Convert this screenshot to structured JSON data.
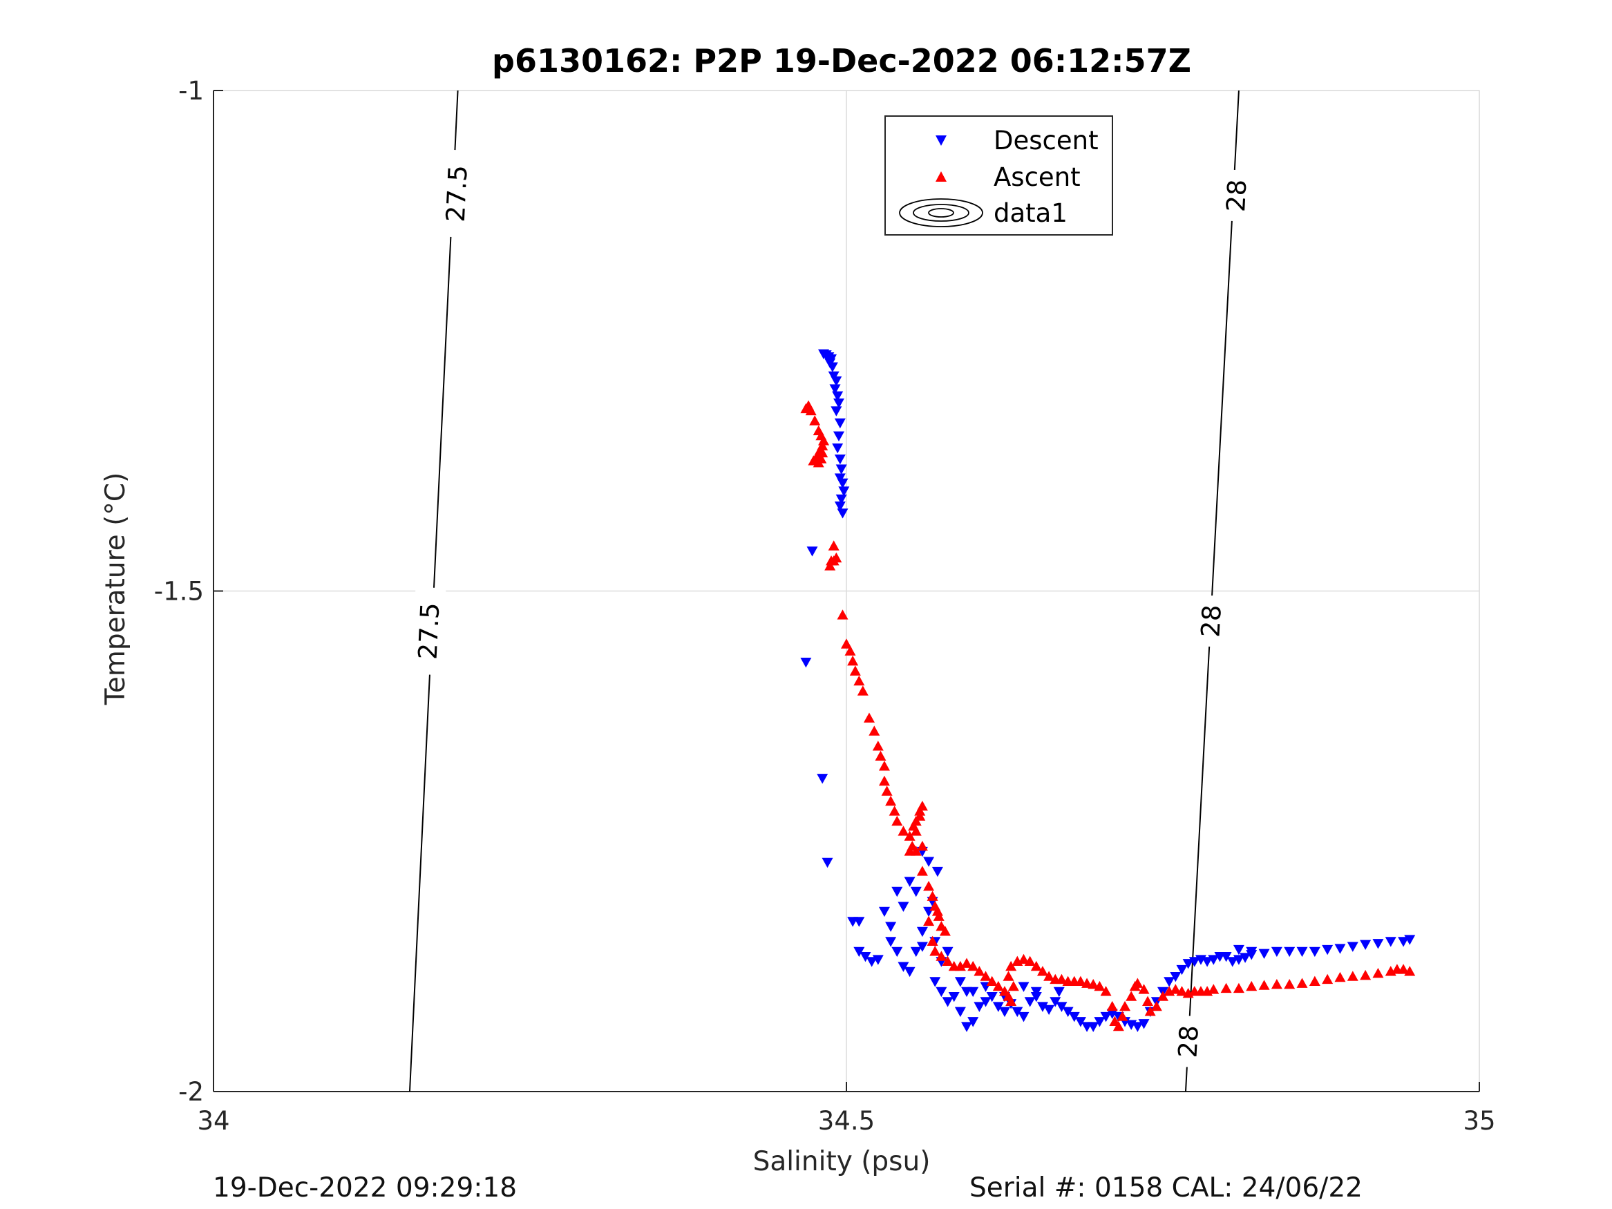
{
  "chart_data": {
    "type": "scatter",
    "title": "p6130162: P2P 19-Dec-2022 06:12:57Z",
    "xlabel": "Salinity (psu)",
    "ylabel": "Temperature (°C)",
    "xlim": [
      34,
      35
    ],
    "ylim": [
      -2,
      -1
    ],
    "xticks": [
      "34",
      "34.5",
      "35"
    ],
    "yticks": [
      "-1",
      "-1.5",
      "-2"
    ],
    "grid": true,
    "legend_position": "top-center",
    "legend": [
      "Descent",
      "Ascent",
      "data1"
    ],
    "colors": {
      "Descent": "#0000ff",
      "Ascent": "#ff0000",
      "contour": "#000000",
      "grid": "#dcdcdc"
    },
    "series": [
      {
        "name": "Descent",
        "marker": "triangle-down",
        "points": [
          [
            34.482,
            -1.263
          ],
          [
            34.484,
            -1.264
          ],
          [
            34.486,
            -1.266
          ],
          [
            34.488,
            -1.268
          ],
          [
            34.487,
            -1.272
          ],
          [
            34.489,
            -1.276
          ],
          [
            34.49,
            -1.285
          ],
          [
            34.492,
            -1.29
          ],
          [
            34.491,
            -1.298
          ],
          [
            34.493,
            -1.305
          ],
          [
            34.494,
            -1.312
          ],
          [
            34.492,
            -1.32
          ],
          [
            34.495,
            -1.332
          ],
          [
            34.494,
            -1.345
          ],
          [
            34.493,
            -1.357
          ],
          [
            34.495,
            -1.368
          ],
          [
            34.496,
            -1.378
          ],
          [
            34.495,
            -1.387
          ],
          [
            34.497,
            -1.392
          ],
          [
            34.498,
            -1.4
          ],
          [
            34.496,
            -1.408
          ],
          [
            34.495,
            -1.415
          ],
          [
            34.497,
            -1.422
          ],
          [
            34.473,
            -1.46
          ],
          [
            34.468,
            -1.571
          ],
          [
            34.481,
            -1.687
          ],
          [
            34.485,
            -1.771
          ],
          [
            34.505,
            -1.83
          ],
          [
            34.51,
            -1.83
          ],
          [
            34.53,
            -1.82
          ],
          [
            34.535,
            -1.835
          ],
          [
            34.54,
            -1.8
          ],
          [
            34.545,
            -1.815
          ],
          [
            34.55,
            -1.79
          ],
          [
            34.555,
            -1.8
          ],
          [
            34.56,
            -1.84
          ],
          [
            34.565,
            -1.82
          ],
          [
            34.57,
            -1.85
          ],
          [
            34.575,
            -1.87
          ],
          [
            34.58,
            -1.86
          ],
          [
            34.568,
            -1.81
          ],
          [
            34.572,
            -1.78
          ],
          [
            34.56,
            -1.76
          ],
          [
            34.565,
            -1.77
          ],
          [
            34.51,
            -1.86
          ],
          [
            34.515,
            -1.865
          ],
          [
            34.52,
            -1.87
          ],
          [
            34.525,
            -1.868
          ],
          [
            34.535,
            -1.85
          ],
          [
            34.54,
            -1.86
          ],
          [
            34.545,
            -1.875
          ],
          [
            34.55,
            -1.88
          ],
          [
            34.555,
            -1.86
          ],
          [
            34.56,
            -1.855
          ],
          [
            34.57,
            -1.89
          ],
          [
            34.575,
            -1.9
          ],
          [
            34.58,
            -1.91
          ],
          [
            34.585,
            -1.905
          ],
          [
            34.59,
            -1.92
          ],
          [
            34.595,
            -1.935
          ],
          [
            34.6,
            -1.93
          ],
          [
            34.605,
            -1.915
          ],
          [
            34.61,
            -1.91
          ],
          [
            34.615,
            -1.905
          ],
          [
            34.62,
            -1.915
          ],
          [
            34.625,
            -1.92
          ],
          [
            34.63,
            -1.912
          ],
          [
            34.635,
            -1.92
          ],
          [
            34.64,
            -1.925
          ],
          [
            34.645,
            -1.91
          ],
          [
            34.65,
            -1.905
          ],
          [
            34.655,
            -1.915
          ],
          [
            34.66,
            -1.918
          ],
          [
            34.665,
            -1.91
          ],
          [
            34.668,
            -1.9
          ],
          [
            34.64,
            -1.895
          ],
          [
            34.65,
            -1.9
          ],
          [
            34.625,
            -1.905
          ],
          [
            34.6,
            -1.9
          ],
          [
            34.61,
            -1.895
          ],
          [
            34.59,
            -1.89
          ],
          [
            34.595,
            -1.9
          ],
          [
            34.67,
            -1.915
          ],
          [
            34.675,
            -1.92
          ],
          [
            34.68,
            -1.925
          ],
          [
            34.685,
            -1.93
          ],
          [
            34.69,
            -1.935
          ],
          [
            34.695,
            -1.935
          ],
          [
            34.7,
            -1.93
          ],
          [
            34.705,
            -1.925
          ],
          [
            34.71,
            -1.922
          ],
          [
            34.715,
            -1.925
          ],
          [
            34.72,
            -1.93
          ],
          [
            34.725,
            -1.933
          ],
          [
            34.73,
            -1.935
          ],
          [
            34.735,
            -1.932
          ],
          [
            34.74,
            -1.92
          ],
          [
            34.745,
            -1.91
          ],
          [
            34.75,
            -1.9
          ],
          [
            34.755,
            -1.89
          ],
          [
            34.76,
            -1.885
          ],
          [
            34.765,
            -1.878
          ],
          [
            34.77,
            -1.872
          ],
          [
            34.775,
            -1.87
          ],
          [
            34.78,
            -1.868
          ],
          [
            34.785,
            -1.87
          ],
          [
            34.79,
            -1.868
          ],
          [
            34.795,
            -1.865
          ],
          [
            34.8,
            -1.865
          ],
          [
            34.805,
            -1.87
          ],
          [
            34.81,
            -1.868
          ],
          [
            34.815,
            -1.866
          ],
          [
            34.82,
            -1.863
          ],
          [
            34.83,
            -1.862
          ],
          [
            34.84,
            -1.86
          ],
          [
            34.85,
            -1.86
          ],
          [
            34.86,
            -1.86
          ],
          [
            34.87,
            -1.86
          ],
          [
            34.88,
            -1.858
          ],
          [
            34.89,
            -1.857
          ],
          [
            34.9,
            -1.855
          ],
          [
            34.91,
            -1.853
          ],
          [
            34.92,
            -1.852
          ],
          [
            34.93,
            -1.85
          ],
          [
            34.94,
            -1.85
          ],
          [
            34.945,
            -1.848
          ],
          [
            34.81,
            -1.858
          ],
          [
            34.82,
            -1.86
          ]
        ]
      },
      {
        "name": "Ascent",
        "marker": "triangle-up",
        "points": [
          [
            34.468,
            -1.318
          ],
          [
            34.47,
            -1.315
          ],
          [
            34.472,
            -1.32
          ],
          [
            34.475,
            -1.33
          ],
          [
            34.478,
            -1.34
          ],
          [
            34.48,
            -1.345
          ],
          [
            34.482,
            -1.35
          ],
          [
            34.481,
            -1.355
          ],
          [
            34.479,
            -1.36
          ],
          [
            34.477,
            -1.365
          ],
          [
            34.476,
            -1.37
          ],
          [
            34.478,
            -1.372
          ],
          [
            34.48,
            -1.368
          ],
          [
            34.481,
            -1.362
          ],
          [
            34.474,
            -1.37
          ],
          [
            34.49,
            -1.455
          ],
          [
            34.492,
            -1.467
          ],
          [
            34.49,
            -1.47
          ],
          [
            34.487,
            -1.475
          ],
          [
            34.488,
            -1.47
          ],
          [
            34.497,
            -1.524
          ],
          [
            34.5,
            -1.553
          ],
          [
            34.503,
            -1.56
          ],
          [
            34.505,
            -1.57
          ],
          [
            34.507,
            -1.58
          ],
          [
            34.51,
            -1.59
          ],
          [
            34.513,
            -1.6
          ],
          [
            34.518,
            -1.627
          ],
          [
            34.522,
            -1.64
          ],
          [
            34.525,
            -1.655
          ],
          [
            34.527,
            -1.665
          ],
          [
            34.53,
            -1.675
          ],
          [
            34.53,
            -1.69
          ],
          [
            34.532,
            -1.7
          ],
          [
            34.535,
            -1.71
          ],
          [
            34.538,
            -1.72
          ],
          [
            34.54,
            -1.73
          ],
          [
            34.545,
            -1.74
          ],
          [
            34.55,
            -1.745
          ],
          [
            34.553,
            -1.735
          ],
          [
            34.555,
            -1.73
          ],
          [
            34.558,
            -1.72
          ],
          [
            34.56,
            -1.715
          ],
          [
            34.558,
            -1.725
          ],
          [
            34.555,
            -1.74
          ],
          [
            34.552,
            -1.755
          ],
          [
            34.55,
            -1.76
          ],
          [
            34.555,
            -1.76
          ],
          [
            34.56,
            -1.755
          ],
          [
            34.56,
            -1.78
          ],
          [
            34.565,
            -1.795
          ],
          [
            34.568,
            -1.805
          ],
          [
            34.57,
            -1.815
          ],
          [
            34.573,
            -1.825
          ],
          [
            34.575,
            -1.835
          ],
          [
            34.578,
            -1.84
          ],
          [
            34.572,
            -1.82
          ],
          [
            34.565,
            -1.83
          ],
          [
            34.568,
            -1.85
          ],
          [
            34.57,
            -1.86
          ],
          [
            34.575,
            -1.865
          ],
          [
            34.58,
            -1.87
          ],
          [
            34.585,
            -1.875
          ],
          [
            34.59,
            -1.875
          ],
          [
            34.595,
            -1.872
          ],
          [
            34.6,
            -1.875
          ],
          [
            34.605,
            -1.88
          ],
          [
            34.61,
            -1.885
          ],
          [
            34.615,
            -1.89
          ],
          [
            34.62,
            -1.895
          ],
          [
            34.625,
            -1.9
          ],
          [
            34.628,
            -1.905
          ],
          [
            34.63,
            -1.91
          ],
          [
            34.632,
            -1.895
          ],
          [
            34.628,
            -1.885
          ],
          [
            34.63,
            -1.875
          ],
          [
            34.635,
            -1.87
          ],
          [
            34.64,
            -1.868
          ],
          [
            34.645,
            -1.87
          ],
          [
            34.65,
            -1.875
          ],
          [
            34.655,
            -1.88
          ],
          [
            34.66,
            -1.885
          ],
          [
            34.665,
            -1.888
          ],
          [
            34.67,
            -1.888
          ],
          [
            34.675,
            -1.89
          ],
          [
            34.68,
            -1.89
          ],
          [
            34.685,
            -1.89
          ],
          [
            34.69,
            -1.892
          ],
          [
            34.695,
            -1.893
          ],
          [
            34.7,
            -1.895
          ],
          [
            34.705,
            -1.9
          ],
          [
            34.71,
            -1.915
          ],
          [
            34.712,
            -1.93
          ],
          [
            34.715,
            -1.935
          ],
          [
            34.718,
            -1.925
          ],
          [
            34.72,
            -1.915
          ],
          [
            34.725,
            -1.905
          ],
          [
            34.728,
            -1.895
          ],
          [
            34.73,
            -1.892
          ],
          [
            34.735,
            -1.898
          ],
          [
            34.738,
            -1.91
          ],
          [
            34.74,
            -1.92
          ],
          [
            34.745,
            -1.915
          ],
          [
            34.75,
            -1.905
          ],
          [
            34.755,
            -1.9
          ],
          [
            34.76,
            -1.898
          ],
          [
            34.765,
            -1.9
          ],
          [
            34.77,
            -1.902
          ],
          [
            34.775,
            -1.9
          ],
          [
            34.78,
            -1.9
          ],
          [
            34.785,
            -1.9
          ],
          [
            34.79,
            -1.898
          ],
          [
            34.8,
            -1.897
          ],
          [
            34.81,
            -1.897
          ],
          [
            34.82,
            -1.895
          ],
          [
            34.83,
            -1.894
          ],
          [
            34.84,
            -1.893
          ],
          [
            34.85,
            -1.893
          ],
          [
            34.86,
            -1.892
          ],
          [
            34.87,
            -1.89
          ],
          [
            34.88,
            -1.888
          ],
          [
            34.89,
            -1.886
          ],
          [
            34.9,
            -1.885
          ],
          [
            34.91,
            -1.884
          ],
          [
            34.92,
            -1.882
          ],
          [
            34.93,
            -1.88
          ],
          [
            34.935,
            -1.878
          ],
          [
            34.94,
            -1.878
          ],
          [
            34.945,
            -1.88
          ]
        ]
      }
    ],
    "contours": [
      {
        "label": "27.5",
        "points": [
          [
            34.193,
            -1.0
          ],
          [
            34.155,
            -2.0
          ]
        ],
        "label_at": [
          [
            34.192,
            -1.103
          ],
          [
            34.17,
            -1.54
          ]
        ]
      },
      {
        "label": "28",
        "points": [
          [
            34.81,
            -1.0
          ],
          [
            34.768,
            -2.0
          ]
        ],
        "label_at": [
          [
            34.808,
            -1.105
          ],
          [
            34.788,
            -1.53
          ],
          [
            34.77,
            -1.95
          ]
        ]
      }
    ]
  },
  "footer": {
    "timestamp": "19-Dec-2022 09:29:18",
    "serial": "Serial #: 0158  CAL: 24/06/22"
  }
}
